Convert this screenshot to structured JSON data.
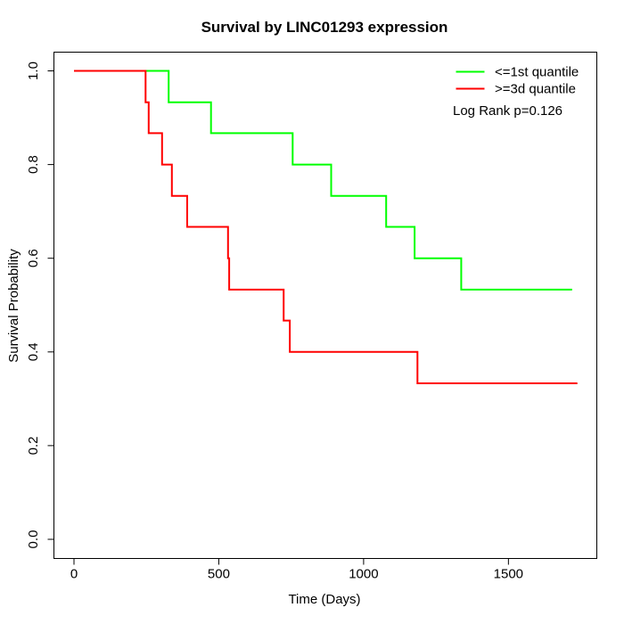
{
  "chart_data": {
    "type": "line",
    "subtype": "kaplan-meier-step",
    "title": "Survival by LINC01293 expression",
    "xlabel": "Time (Days)",
    "ylabel": "Survival Probability",
    "xlim": [
      0,
      1740
    ],
    "ylim": [
      0.0,
      1.0
    ],
    "x_ticks": [
      0,
      500,
      1000,
      1500
    ],
    "y_ticks": [
      "0.0",
      "0.2",
      "0.4",
      "0.6",
      "0.8",
      "1.0"
    ],
    "grid": false,
    "legend_position": "top-right",
    "annotation": "Log Rank p=0.126",
    "axis_color": "#000000",
    "background_color": "#ffffff",
    "series": [
      {
        "name": "<=1st quantile",
        "color": "#00ff00",
        "start_value": 1.0,
        "steps": [
          [
            327,
            0.933
          ],
          [
            473,
            0.867
          ],
          [
            755,
            0.8
          ],
          [
            888,
            0.733
          ],
          [
            1078,
            0.667
          ],
          [
            1176,
            0.6
          ],
          [
            1337,
            0.533
          ]
        ],
        "end_time": 1720
      },
      {
        "name": ">=3d quantile",
        "color": "#ff0000",
        "start_value": 1.0,
        "steps": [
          [
            247,
            0.933
          ],
          [
            258,
            0.867
          ],
          [
            304,
            0.8
          ],
          [
            338,
            0.733
          ],
          [
            391,
            0.667
          ],
          [
            532,
            0.6
          ],
          [
            536,
            0.533
          ],
          [
            724,
            0.467
          ],
          [
            745,
            0.4
          ],
          [
            1186,
            0.333
          ]
        ],
        "end_time": 1738
      }
    ]
  }
}
